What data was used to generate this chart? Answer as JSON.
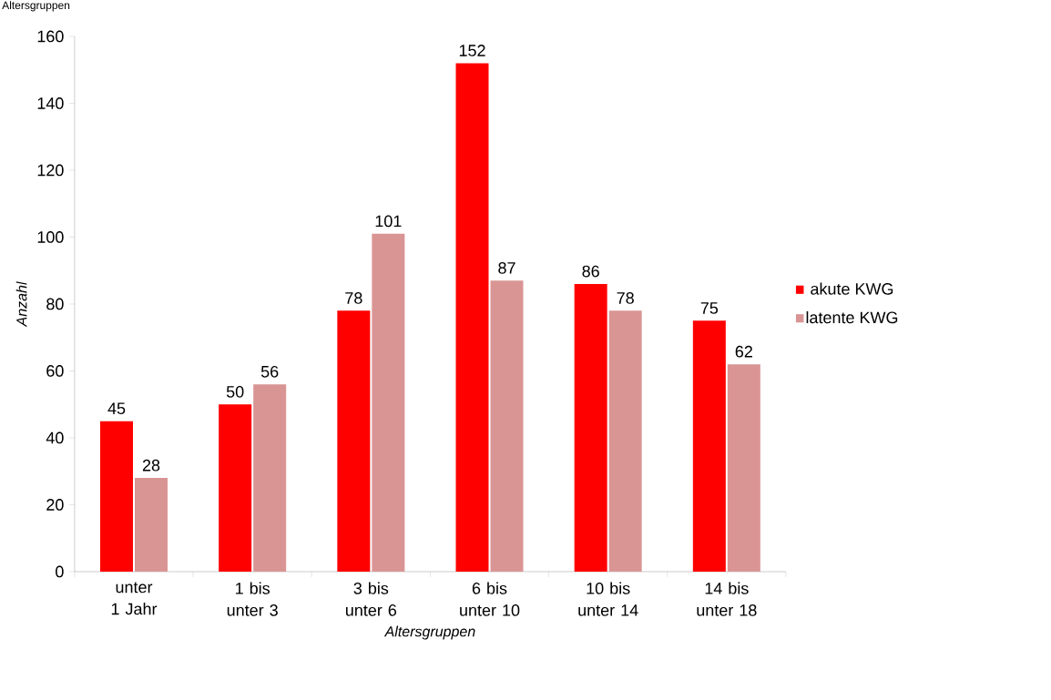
{
  "chart_data": {
    "type": "bar",
    "title": "Altersgruppen",
    "xlabel": "Altersgruppen",
    "ylabel": "Anzahl",
    "categories": [
      "unter 1 Jahr",
      "1 bis unter 3",
      "3 bis unter 6",
      "6 bis unter 10",
      "10 bis unter 14",
      "14 bis unter 18"
    ],
    "series": [
      {
        "name": "akute KWG",
        "color": "#ff0000",
        "values": [
          45,
          50,
          78,
          152,
          86,
          75
        ]
      },
      {
        "name": "latente KWG",
        "color": "#d99594",
        "values": [
          28,
          56,
          101,
          87,
          78,
          62
        ]
      }
    ],
    "ylim": [
      0,
      160
    ],
    "yticks": [
      0,
      20,
      40,
      60,
      80,
      100,
      120,
      140,
      160
    ],
    "data_labels": true,
    "legend": "right",
    "grid": false
  }
}
